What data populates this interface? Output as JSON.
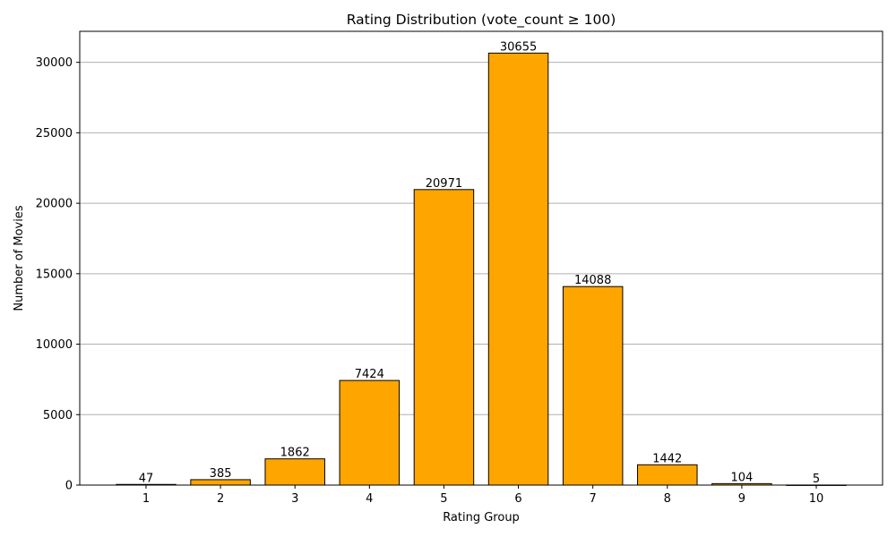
{
  "chart_data": {
    "type": "bar",
    "title": "Rating Distribution (vote_count ≥ 100)",
    "xlabel": "Rating Group",
    "ylabel": "Number of Movies",
    "categories": [
      "1",
      "2",
      "3",
      "4",
      "5",
      "6",
      "7",
      "8",
      "9",
      "10"
    ],
    "values": [
      47,
      385,
      1862,
      7424,
      20971,
      30655,
      14088,
      1442,
      104,
      5
    ],
    "ylim": [
      0,
      32200
    ],
    "yticks": [
      0,
      5000,
      10000,
      15000,
      20000,
      25000,
      30000
    ],
    "grid": "y",
    "bar_color": "#FFA500",
    "edge_color": "#000000",
    "data_labels": true
  }
}
